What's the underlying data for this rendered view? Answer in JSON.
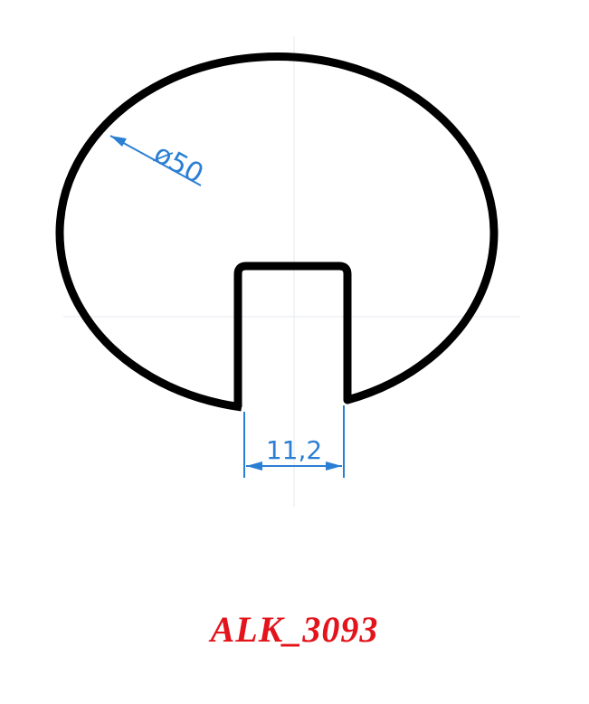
{
  "drawing": {
    "diameter_label": "ø50",
    "slot_width_label": "11,2",
    "profile_color": "#000000",
    "dimension_color": "#2a7fd4"
  },
  "product": {
    "code": "ALK_3093",
    "code_color": "#e3141b"
  }
}
